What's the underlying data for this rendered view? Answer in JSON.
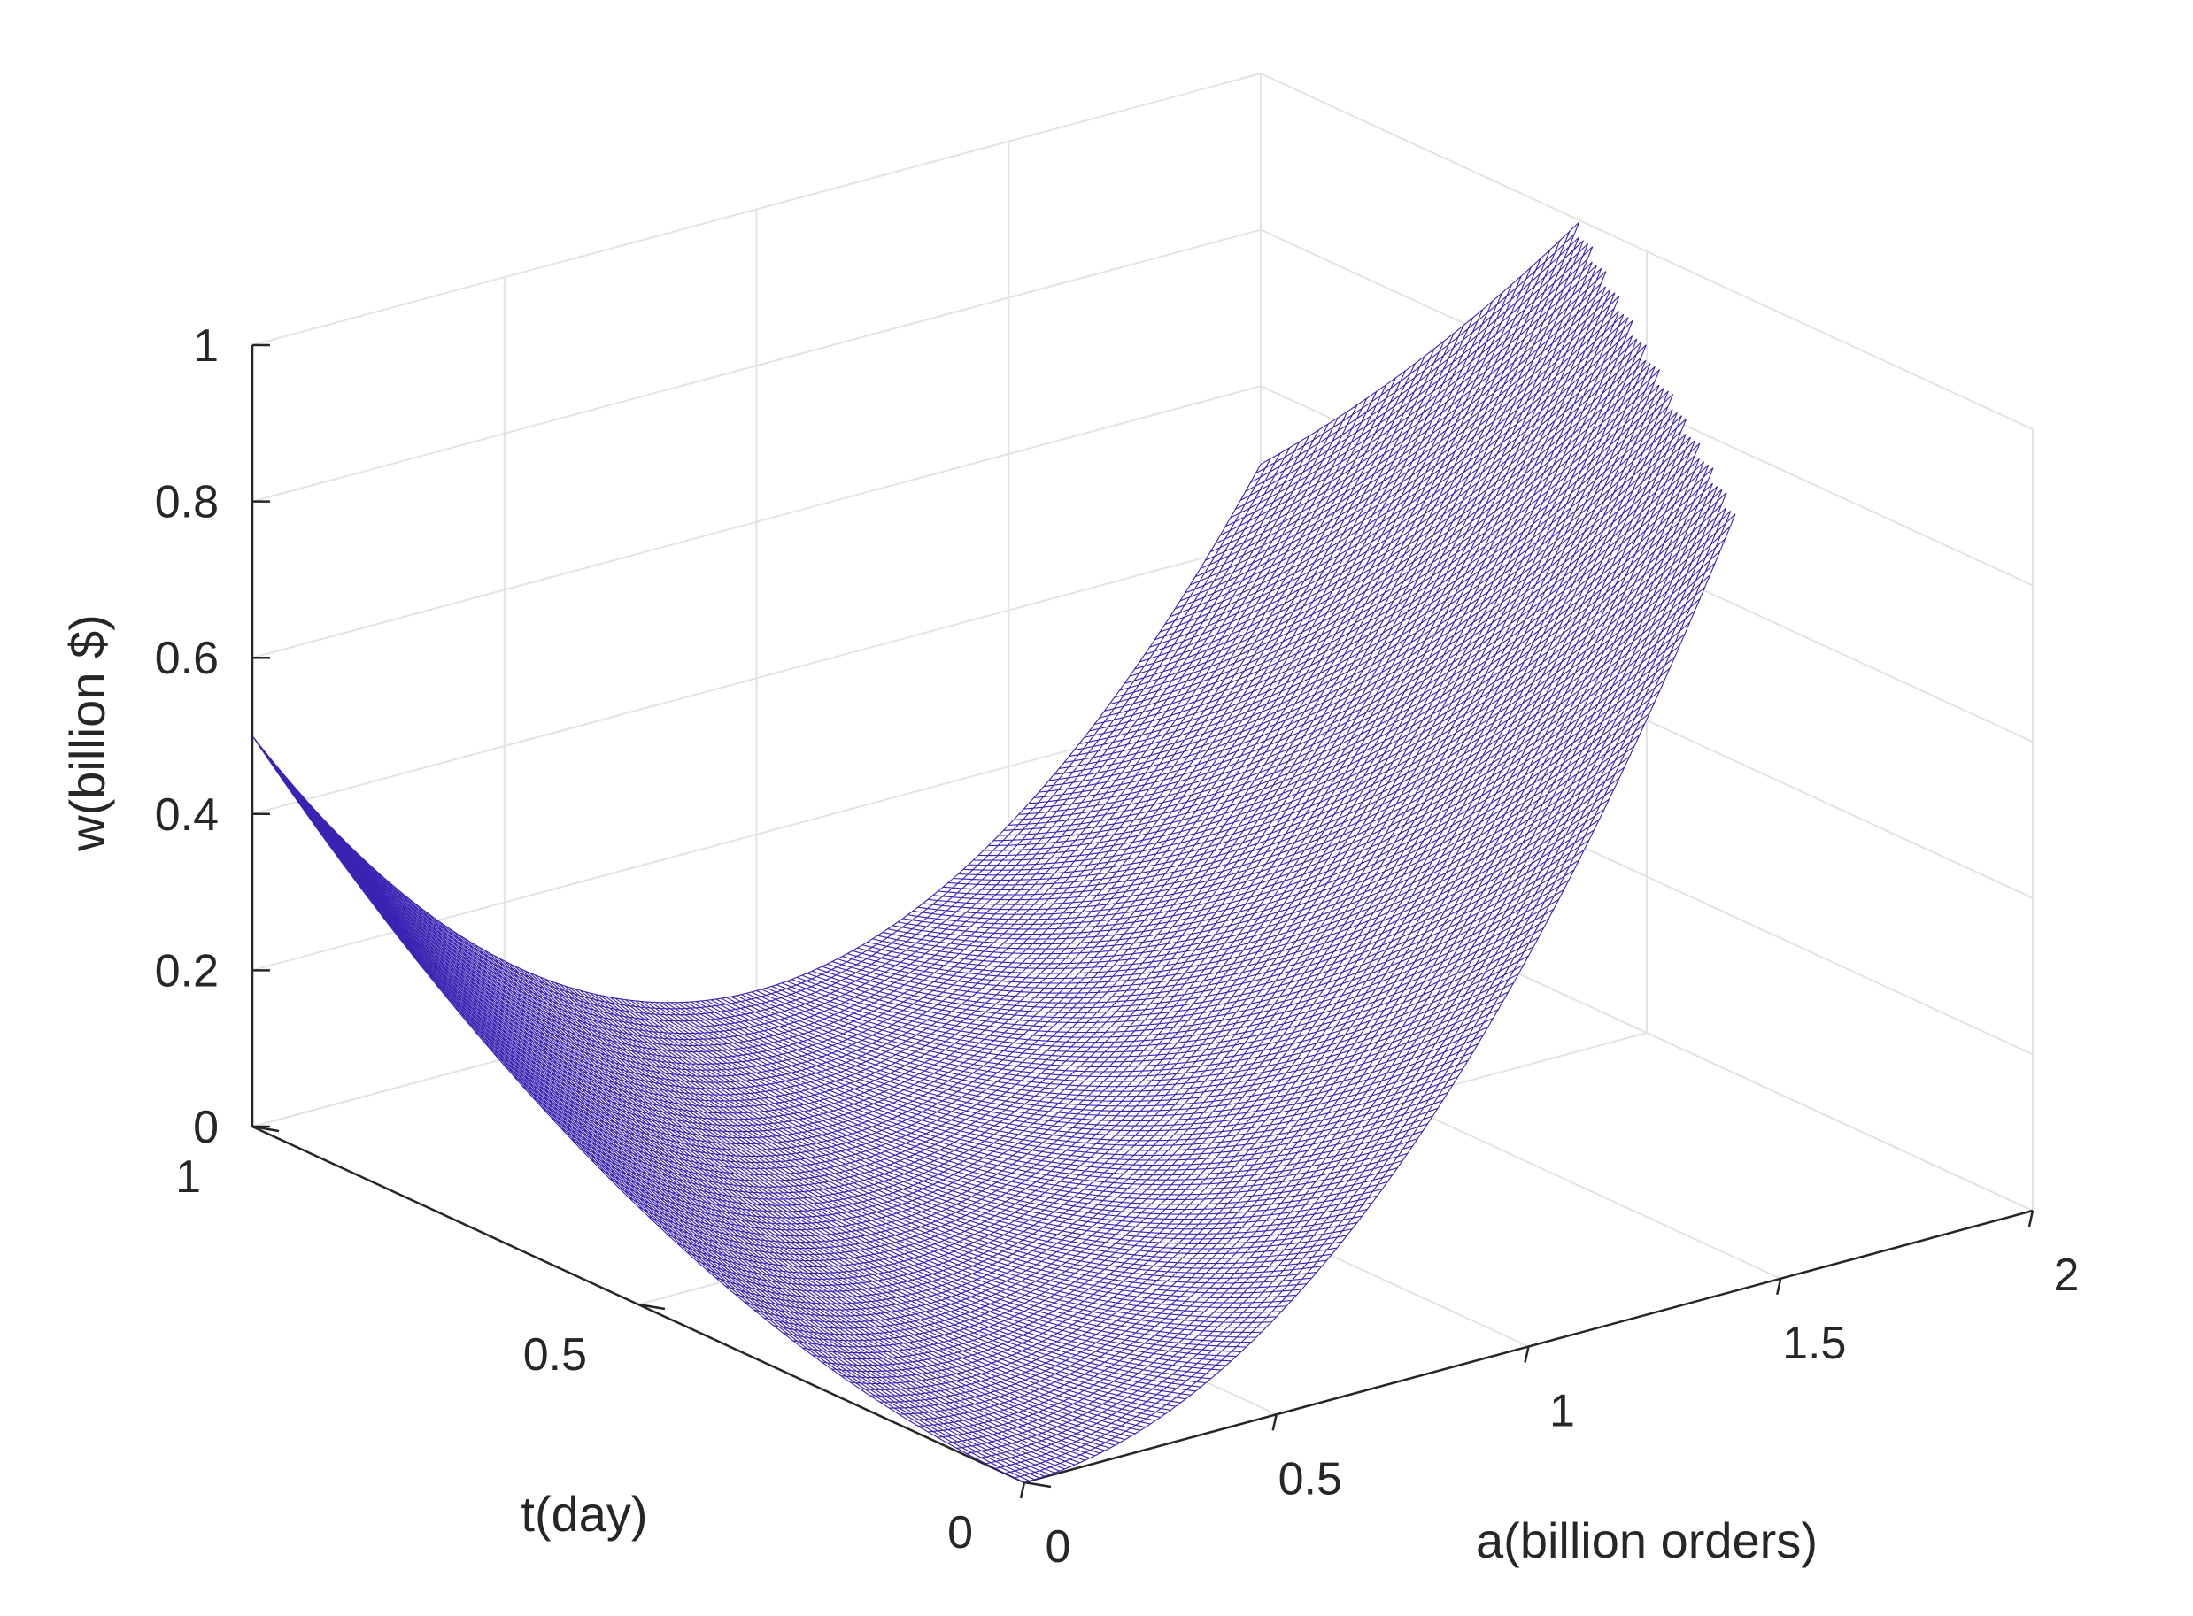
{
  "chart_data": {
    "type": "surface",
    "title": "",
    "xlabel": "a(billion orders)",
    "ylabel": "t(day)",
    "zlabel": "w(billion $)",
    "xlim": [
      0,
      2
    ],
    "ylim": [
      0,
      1
    ],
    "zlim": [
      0,
      1
    ],
    "xticks": [
      0,
      0.5,
      1,
      1.5,
      2
    ],
    "xtick_labels": [
      "0",
      "0.5",
      "1",
      "1.5",
      "2"
    ],
    "yticks": [
      0,
      0.5,
      1
    ],
    "ytick_labels": [
      "0",
      "0.5",
      "1"
    ],
    "zticks": [
      0,
      0.2,
      0.4,
      0.6,
      0.8,
      1
    ],
    "ztick_labels": [
      "0",
      "0.2",
      "0.4",
      "0.6",
      "0.8",
      "1"
    ],
    "grid": true,
    "surface": {
      "function": "w = (a - t)^2 / 2",
      "a_range": [
        0,
        2
      ],
      "t_range": [
        0,
        1
      ],
      "samples": {
        "a": [
          0,
          0.5,
          1,
          1.5,
          2
        ],
        "t": [
          0,
          0.5,
          1
        ],
        "w": [
          [
            0,
            0.125,
            0.5,
            1.125,
            2
          ],
          [
            0.125,
            0,
            0.125,
            0.5,
            1.125
          ],
          [
            0.5,
            0.125,
            0,
            0.125,
            0.5
          ]
        ]
      },
      "z_clipped_at": 1,
      "edge_color": "#3b22b2",
      "face_color": "#ffffff"
    },
    "colors": {
      "grid": "#e3e3e3",
      "axis": "#262626",
      "surface": "#3b22b2"
    }
  }
}
